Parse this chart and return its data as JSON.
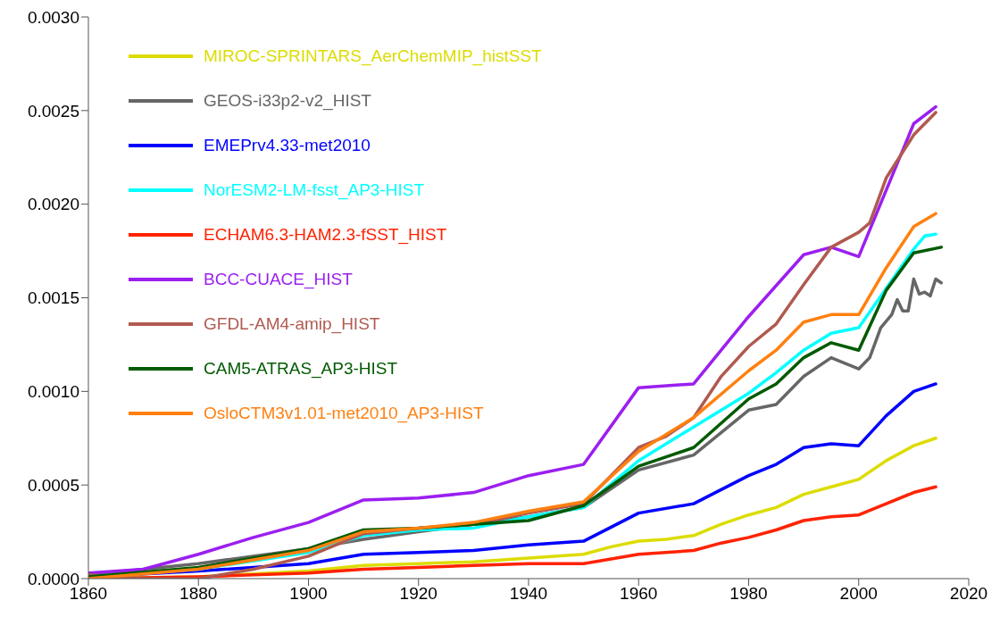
{
  "chart_data": {
    "type": "line",
    "xlim": [
      1860,
      2020
    ],
    "xticks": [
      1860,
      1880,
      1900,
      1920,
      1940,
      1960,
      1980,
      2000,
      2020
    ],
    "ylim": [
      0,
      0.003
    ],
    "yticks": [
      {
        "value": 0,
        "label": "0.0000"
      },
      {
        "value": 0.0005,
        "label": "0.0005"
      },
      {
        "value": 0.001,
        "label": "0.0010"
      },
      {
        "value": 0.0015,
        "label": "0.0015"
      },
      {
        "value": 0.002,
        "label": "0.0020"
      },
      {
        "value": 0.0025,
        "label": "0.0025"
      },
      {
        "value": 0.003,
        "label": "0.0030"
      }
    ],
    "grid": false,
    "legend": "top left",
    "marker": "none",
    "line_style": "solid",
    "series": [
      {
        "name": "MIROC-SPRINTARS_AerChemMIP_histSST",
        "color": "#dcdc00",
        "x": [
          1860,
          1880,
          1900,
          1910,
          1920,
          1930,
          1940,
          1950,
          1955,
          1960,
          1965,
          1970,
          1975,
          1980,
          1985,
          1990,
          1995,
          2000,
          2005,
          2010,
          2014
        ],
        "values": [
          0,
          1e-05,
          4e-05,
          7e-05,
          8e-05,
          9e-05,
          0.00011,
          0.00013,
          0.00017,
          0.0002,
          0.00021,
          0.00023,
          0.00029,
          0.00034,
          0.00038,
          0.00045,
          0.00049,
          0.00053,
          0.00063,
          0.00071,
          0.00075
        ]
      },
      {
        "name": "GEOS-i33p2-v2_HIST",
        "color": "#666666",
        "x": [
          1860,
          1880,
          1900,
          1910,
          1920,
          1930,
          1940,
          1950,
          1960,
          1970,
          1980,
          1985,
          1990,
          1995,
          2000,
          2002,
          2004,
          2006,
          2007,
          2008,
          2009,
          2010,
          2011,
          2012,
          2013,
          2014,
          2015
        ],
        "values": [
          2e-05,
          8e-05,
          0.00016,
          0.00021,
          0.00025,
          0.00029,
          0.00033,
          0.00038,
          0.00058,
          0.00066,
          0.0009,
          0.00093,
          0.00108,
          0.00118,
          0.00112,
          0.00118,
          0.00134,
          0.00141,
          0.00149,
          0.00143,
          0.00143,
          0.0016,
          0.00152,
          0.00153,
          0.00151,
          0.0016,
          0.00158
        ]
      },
      {
        "name": "EMEPrv4.33-met2010",
        "color": "#0000ff",
        "x": [
          1860,
          1880,
          1900,
          1910,
          1920,
          1930,
          1940,
          1950,
          1960,
          1970,
          1980,
          1985,
          1990,
          1995,
          2000,
          2005,
          2010,
          2014
        ],
        "values": [
          1e-05,
          4e-05,
          8e-05,
          0.00013,
          0.00014,
          0.00015,
          0.00018,
          0.0002,
          0.00035,
          0.0004,
          0.00055,
          0.00061,
          0.0007,
          0.00072,
          0.00071,
          0.00087,
          0.001,
          0.00104
        ]
      },
      {
        "name": "NorESM2-LM-fsst_AP3-HIST",
        "color": "#00ffff",
        "x": [
          1860,
          1880,
          1900,
          1910,
          1920,
          1930,
          1940,
          1950,
          1960,
          1970,
          1980,
          1985,
          1990,
          1995,
          2000,
          2005,
          2010,
          2012,
          2014
        ],
        "values": [
          1e-05,
          5e-05,
          0.00014,
          0.00023,
          0.00026,
          0.00027,
          0.00033,
          0.00038,
          0.00063,
          0.00081,
          0.00099,
          0.0011,
          0.00122,
          0.00131,
          0.00134,
          0.00155,
          0.00176,
          0.00183,
          0.00184
        ]
      },
      {
        "name": "ECHAM6.3-HAM2.3-fSST_HIST",
        "color": "#ff2200",
        "x": [
          1860,
          1880,
          1900,
          1910,
          1920,
          1930,
          1940,
          1950,
          1960,
          1970,
          1975,
          1980,
          1985,
          1990,
          1995,
          2000,
          2005,
          2010,
          2014
        ],
        "values": [
          0,
          1e-05,
          3e-05,
          5e-05,
          6e-05,
          7e-05,
          8e-05,
          8e-05,
          0.00013,
          0.00015,
          0.00019,
          0.00022,
          0.00026,
          0.00031,
          0.00033,
          0.00034,
          0.0004,
          0.00046,
          0.00049
        ]
      },
      {
        "name": "BCC-CUACE_HIST",
        "color": "#9b1ff0",
        "x": [
          1860,
          1870,
          1880,
          1890,
          1900,
          1910,
          1920,
          1930,
          1940,
          1950,
          1960,
          1970,
          1980,
          1990,
          1995,
          2000,
          2010,
          2014
        ],
        "values": [
          3e-05,
          5e-05,
          0.00013,
          0.00022,
          0.0003,
          0.00042,
          0.00043,
          0.00046,
          0.00055,
          0.00061,
          0.00102,
          0.00104,
          0.0014,
          0.00173,
          0.00177,
          0.00172,
          0.00243,
          0.00252
        ]
      },
      {
        "name": "GFDL-AM4-amip_HIST",
        "color": "#b05a50",
        "x": [
          1860,
          1870,
          1880,
          1890,
          1900,
          1910,
          1920,
          1930,
          1940,
          1950,
          1955,
          1960,
          1965,
          1970,
          1975,
          1980,
          1985,
          1990,
          1995,
          2000,
          2002,
          2005,
          2010,
          2014
        ],
        "values": [
          2e-05,
          0,
          0,
          5e-05,
          0.00012,
          0.00024,
          0.00027,
          0.00029,
          0.00035,
          0.0004,
          0.00055,
          0.0007,
          0.00076,
          0.00086,
          0.00108,
          0.00124,
          0.00136,
          0.00157,
          0.00177,
          0.00185,
          0.0019,
          0.00214,
          0.00237,
          0.00249
        ]
      },
      {
        "name": "CAM5-ATRAS_AP3-HIST",
        "color": "#005a00",
        "x": [
          1860,
          1880,
          1900,
          1910,
          1920,
          1930,
          1940,
          1950,
          1960,
          1970,
          1980,
          1985,
          1990,
          1995,
          2000,
          2005,
          2010,
          2015
        ],
        "values": [
          1e-05,
          6e-05,
          0.00016,
          0.00026,
          0.00027,
          0.00029,
          0.00031,
          0.00039,
          0.0006,
          0.0007,
          0.00096,
          0.00104,
          0.00118,
          0.00126,
          0.00122,
          0.00154,
          0.00174,
          0.00177
        ]
      },
      {
        "name": "OsloCTM3v1.01-met2010_AP3-HIST",
        "color": "#ff8010",
        "x": [
          1860,
          1880,
          1900,
          1910,
          1920,
          1930,
          1940,
          1950,
          1960,
          1970,
          1980,
          1985,
          1990,
          1995,
          2000,
          2005,
          2010,
          2014
        ],
        "values": [
          0,
          5e-05,
          0.00015,
          0.00025,
          0.00027,
          0.0003,
          0.00036,
          0.00041,
          0.00068,
          0.00086,
          0.00111,
          0.00122,
          0.00137,
          0.00141,
          0.00141,
          0.00166,
          0.00188,
          0.00195
        ]
      }
    ]
  }
}
